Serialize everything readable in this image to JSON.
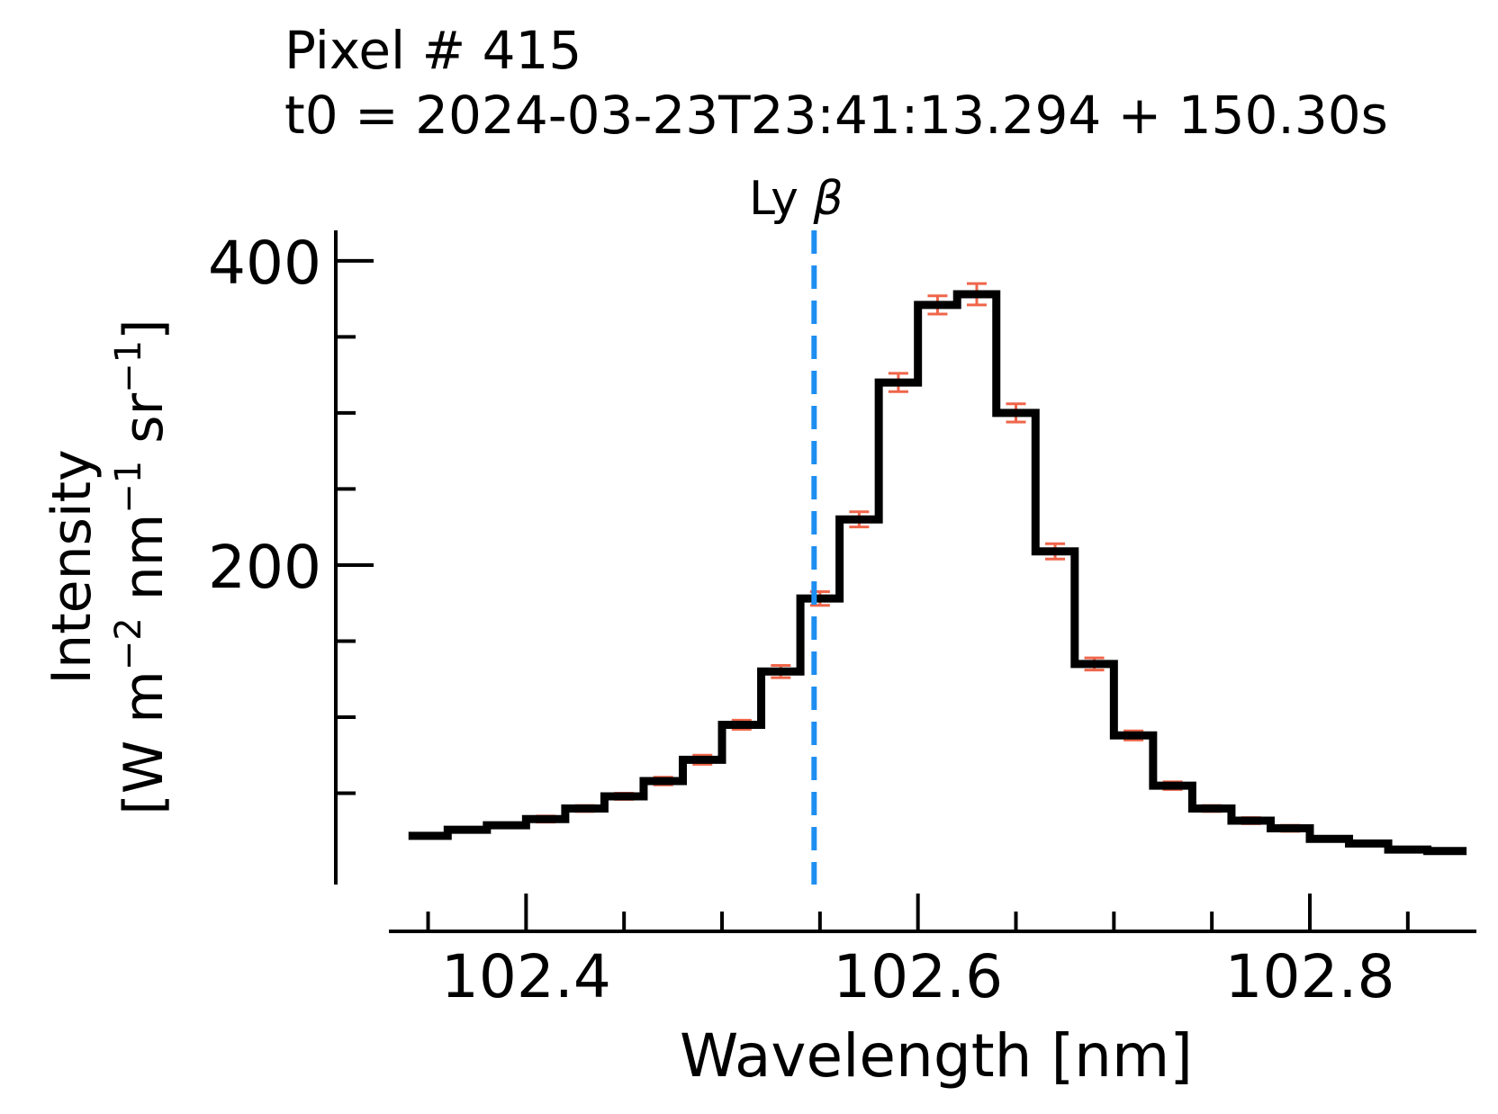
{
  "chart_data": {
    "type": "line",
    "style": "step",
    "title_lines": [
      "Pixel # 415",
      "t0 = 2024-03-23T23:41:13.294 + 150.30s"
    ],
    "xlabel": "Wavelength [nm]",
    "ylabel_line1": "Intensity",
    "ylabel_line2": "[W m$^{-2}$ nm$^{-1}$ sr$^{-1}$]",
    "ylabel_parts": {
      "open": "[W m",
      "sup1": "−2",
      "mid1": " nm",
      "sup2": "−1",
      "mid2": " sr",
      "sup3": "−1",
      "close": "]"
    },
    "xlim": [
      102.33,
      102.885
    ],
    "ylim": [
      -10,
      420
    ],
    "x_ticks": [
      102.4,
      102.6,
      102.8
    ],
    "x_tick_labels": [
      "102.4",
      "102.6",
      "102.8"
    ],
    "x_minor_ticks": [
      102.35,
      102.4,
      102.45,
      102.5,
      102.55,
      102.6,
      102.65,
      102.7,
      102.75,
      102.8,
      102.85
    ],
    "y_ticks": [
      200,
      400
    ],
    "y_tick_labels": [
      "200",
      "400"
    ],
    "y_minor_ticks": [
      50,
      100,
      150,
      200,
      250,
      300,
      350,
      400
    ],
    "line_color": "#000000",
    "error_color": "#f0654a",
    "annotation": {
      "text": "Ly",
      "symbol": "β",
      "x": 102.547,
      "color": "#1f8ef1"
    },
    "bin_width": 0.02,
    "x": [
      102.35,
      102.37,
      102.39,
      102.41,
      102.43,
      102.45,
      102.47,
      102.49,
      102.51,
      102.53,
      102.55,
      102.57,
      102.59,
      102.61,
      102.63,
      102.65,
      102.67,
      102.69,
      102.71,
      102.73,
      102.75,
      102.77,
      102.79,
      102.81,
      102.83,
      102.85,
      102.87
    ],
    "series": [
      {
        "values": [
          22,
          26,
          29,
          33,
          40,
          48,
          58,
          72,
          95,
          130,
          178,
          230,
          320,
          371,
          378,
          300,
          209,
          135,
          88,
          55,
          40,
          32,
          27,
          20,
          17,
          13,
          12
        ],
        "errors": [
          1,
          1,
          1.5,
          2,
          2,
          2,
          2.5,
          3,
          3,
          4,
          4.5,
          5,
          6,
          6,
          7,
          6,
          5,
          4,
          3,
          2.5,
          2,
          2,
          2,
          1.5,
          1.5,
          1,
          1
        ]
      }
    ]
  }
}
